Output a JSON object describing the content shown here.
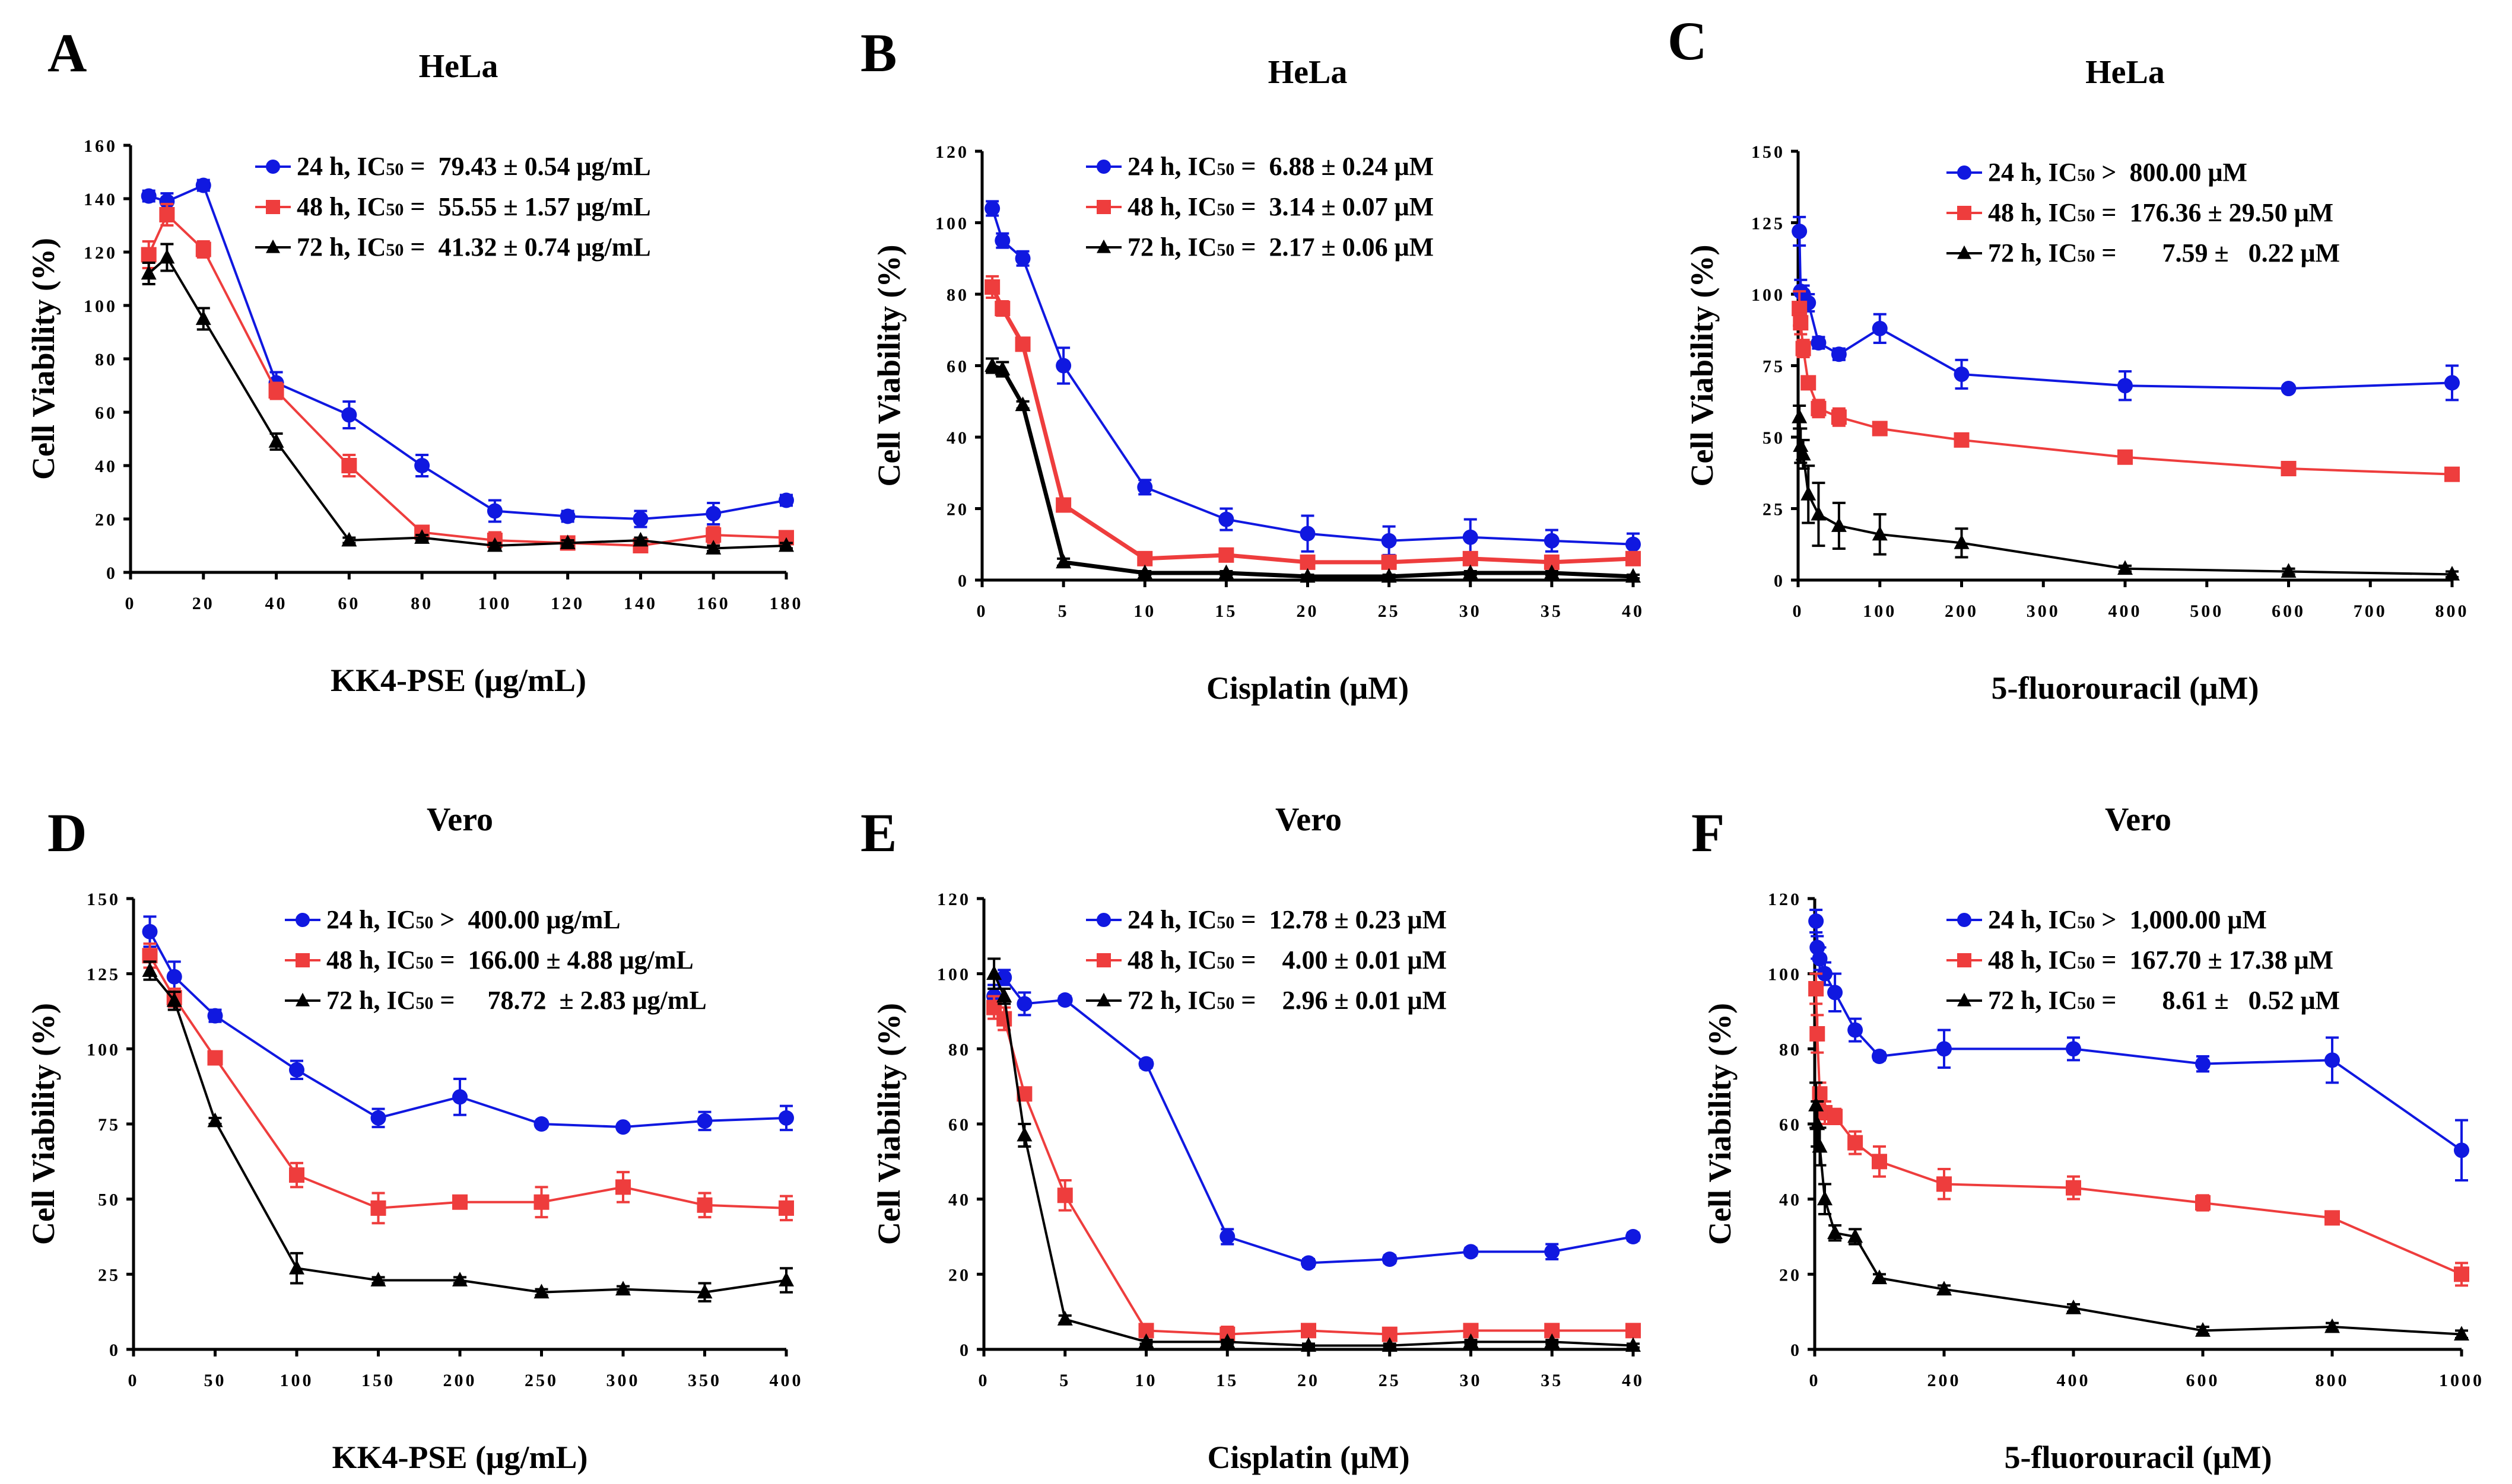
{
  "colors": {
    "24h": "#1018e0",
    "48h": "#ee3d3d",
    "72h": "#000000"
  },
  "chart_data": [
    {
      "panel": "A",
      "type": "line",
      "title": "HeLa",
      "xlabel": "KK4-PSE (μg/mL)",
      "ylabel": "Cell Viability (%)",
      "xlim": [
        0,
        180
      ],
      "ylim": [
        0,
        160
      ],
      "xticks": [
        0,
        20,
        40,
        60,
        80,
        100,
        120,
        140,
        160,
        180
      ],
      "yticks": [
        0,
        20,
        40,
        60,
        80,
        100,
        120,
        140,
        160
      ],
      "series": [
        {
          "key": "24h",
          "marker": "circle",
          "legend": {
            "pre": "24 h, IC",
            "sub": "50",
            "post": " =  79.43 ± 0.54 μg/mL"
          },
          "x": [
            5,
            10,
            20,
            40,
            60,
            80,
            100,
            120,
            140,
            160,
            180
          ],
          "y": [
            141,
            139,
            145,
            71,
            59,
            40,
            23,
            21,
            20,
            22,
            27
          ],
          "err": [
            2,
            3,
            2,
            4,
            5,
            4,
            4,
            2,
            3,
            4,
            2
          ]
        },
        {
          "key": "48h",
          "marker": "square",
          "legend": {
            "pre": "48 h, IC",
            "sub": "50",
            "post": " =  55.55 ± 1.57 μg/mL"
          },
          "x": [
            5,
            10,
            20,
            40,
            60,
            80,
            100,
            120,
            140,
            160,
            180
          ],
          "y": [
            119,
            134,
            121,
            68,
            40,
            15,
            12,
            11,
            10,
            14,
            13
          ],
          "err": [
            5,
            4,
            3,
            3,
            4,
            2,
            3,
            2,
            2,
            3,
            2
          ]
        },
        {
          "key": "72h",
          "marker": "triangle",
          "legend": {
            "pre": "72 h, IC",
            "sub": "50",
            "post": " =  41.32 ± 0.74 μg/mL"
          },
          "x": [
            5,
            10,
            20,
            40,
            60,
            80,
            100,
            120,
            140,
            160,
            180
          ],
          "y": [
            112,
            118,
            95,
            49,
            12,
            13,
            10,
            11,
            12,
            9,
            10
          ],
          "err": [
            4,
            5,
            4,
            3,
            1,
            1,
            1,
            1,
            1,
            1,
            1
          ]
        }
      ]
    },
    {
      "panel": "B",
      "type": "line",
      "title": "HeLa",
      "xlabel": "Cisplatin (μM)",
      "ylabel": "Cell Viability (%)",
      "xlim": [
        0,
        40
      ],
      "ylim": [
        0,
        120
      ],
      "xticks": [
        0,
        5,
        10,
        15,
        20,
        25,
        30,
        35,
        40
      ],
      "yticks": [
        0,
        20,
        40,
        60,
        80,
        100,
        120
      ],
      "series": [
        {
          "key": "24h",
          "marker": "circle",
          "legend": {
            "pre": "24 h, IC",
            "sub": "50",
            "post": " =  6.88 ± 0.24 μM"
          },
          "x": [
            0.625,
            1.25,
            2.5,
            5,
            10,
            15,
            20,
            25,
            30,
            35,
            40
          ],
          "y": [
            104,
            95,
            90,
            60,
            26,
            17,
            13,
            11,
            12,
            11,
            10
          ],
          "err": [
            2,
            2,
            2,
            5,
            2,
            3,
            5,
            4,
            5,
            3,
            3
          ]
        },
        {
          "key": "48h",
          "marker": "square",
          "legend": {
            "pre": "48 h, IC",
            "sub": "50",
            "post": " =  3.14 ± 0.07 μM"
          },
          "x": [
            0.625,
            1.25,
            2.5,
            5,
            10,
            15,
            20,
            25,
            30,
            35,
            40
          ],
          "y": [
            82,
            76,
            66,
            21,
            6,
            7,
            5,
            5,
            6,
            5,
            6
          ],
          "err": [
            3,
            2,
            1,
            1,
            1,
            1,
            1,
            1,
            1,
            1,
            1
          ]
        },
        {
          "key": "72h",
          "marker": "triangle",
          "legend": {
            "pre": "72 h, IC",
            "sub": "50",
            "post": " =  2.17 ± 0.06 μM"
          },
          "x": [
            0.625,
            1.25,
            2.5,
            5,
            10,
            15,
            20,
            25,
            30,
            35,
            40
          ],
          "y": [
            60,
            59,
            49,
            5,
            2,
            2,
            1,
            1,
            2,
            2,
            1
          ],
          "err": [
            2,
            2,
            1,
            1,
            0.5,
            0.5,
            0.5,
            0.5,
            0.5,
            0.5,
            0.5
          ]
        }
      ]
    },
    {
      "panel": "C",
      "type": "line",
      "title": "HeLa",
      "xlabel": "5-fluorouracil (μM)",
      "ylabel": "Cell Viability (%)",
      "xlim": [
        0,
        800
      ],
      "ylim": [
        0,
        150
      ],
      "xticks": [
        0,
        100,
        200,
        300,
        400,
        500,
        600,
        700,
        800
      ],
      "yticks": [
        0,
        25,
        50,
        75,
        100,
        125,
        150
      ],
      "series": [
        {
          "key": "24h",
          "marker": "circle",
          "legend": {
            "pre": "24 h, IC",
            "sub": "50",
            "post": " >  800.00 μM"
          },
          "x": [
            1.5625,
            3.125,
            6.25,
            12.5,
            25,
            50,
            100,
            200,
            400,
            600,
            800
          ],
          "y": [
            122,
            101,
            100,
            97,
            83,
            79,
            88,
            72,
            68,
            67,
            69
          ],
          "err": [
            5,
            4,
            3,
            3,
            2,
            2,
            5,
            5,
            5,
            1,
            6
          ]
        },
        {
          "key": "48h",
          "marker": "square",
          "legend": {
            "pre": "48 h, IC",
            "sub": "50",
            "post": " =  176.36 ± 29.50 μM"
          },
          "x": [
            1.5625,
            3.125,
            6.25,
            12.5,
            25,
            50,
            100,
            200,
            400,
            600,
            800
          ],
          "y": [
            95,
            90,
            81,
            69,
            60,
            57,
            53,
            49,
            43,
            39,
            37
          ],
          "err": [
            6,
            4,
            3,
            2,
            3,
            3,
            2,
            1,
            1,
            1,
            1
          ]
        },
        {
          "key": "72h",
          "marker": "triangle",
          "legend": {
            "pre": "72 h, IC",
            "sub": "50",
            "post": " =       7.59 ±   0.22 μM"
          },
          "x": [
            1.5625,
            3.125,
            6.25,
            12.5,
            25,
            50,
            100,
            200,
            400,
            600,
            800
          ],
          "y": [
            57,
            47,
            44,
            30,
            23,
            19,
            16,
            13,
            4,
            3,
            2
          ],
          "err": [
            4,
            6,
            5,
            10,
            11,
            8,
            7,
            5,
            1,
            1,
            1
          ]
        }
      ]
    },
    {
      "panel": "D",
      "type": "line",
      "title": "Vero",
      "xlabel": "KK4-PSE (μg/mL)",
      "ylabel": "Cell Viability (%)",
      "xlim": [
        0,
        400
      ],
      "ylim": [
        0,
        150
      ],
      "xticks": [
        0,
        50,
        100,
        150,
        200,
        250,
        300,
        350,
        400
      ],
      "yticks": [
        0,
        25,
        50,
        75,
        100,
        125,
        150
      ],
      "series": [
        {
          "key": "24h",
          "marker": "circle",
          "legend": {
            "pre": "24 h, IC",
            "sub": "50",
            "post": " >  400.00 μg/mL"
          },
          "x": [
            10,
            25,
            50,
            100,
            150,
            200,
            250,
            300,
            350,
            400
          ],
          "y": [
            139,
            124,
            111,
            93,
            77,
            84,
            75,
            74,
            76,
            77
          ],
          "err": [
            5,
            5,
            2,
            3,
            3,
            6,
            1,
            1,
            3,
            4
          ]
        },
        {
          "key": "48h",
          "marker": "square",
          "legend": {
            "pre": "48 h, IC",
            "sub": "50",
            "post": " =  166.00 ± 4.88 μg/mL"
          },
          "x": [
            10,
            25,
            50,
            100,
            150,
            200,
            250,
            300,
            350,
            400
          ],
          "y": [
            131,
            117,
            97,
            58,
            47,
            49,
            49,
            54,
            48,
            47
          ],
          "err": [
            4,
            3,
            2,
            4,
            5,
            2,
            5,
            5,
            4,
            4
          ]
        },
        {
          "key": "72h",
          "marker": "triangle",
          "legend": {
            "pre": "72 h, IC",
            "sub": "50",
            "post": " =     78.72  ± 2.83 μg/mL"
          },
          "x": [
            10,
            25,
            50,
            100,
            150,
            200,
            250,
            300,
            350,
            400
          ],
          "y": [
            126,
            116,
            76,
            27,
            23,
            23,
            19,
            20,
            19,
            23
          ],
          "err": [
            3,
            3,
            1,
            5,
            1,
            1,
            1,
            1,
            3,
            4
          ]
        }
      ]
    },
    {
      "panel": "E",
      "type": "line",
      "title": "Vero",
      "xlabel": "Cisplatin (μM)",
      "ylabel": "Cell Viability (%)",
      "xlim": [
        0,
        40
      ],
      "ylim": [
        0,
        120
      ],
      "xticks": [
        0,
        5,
        10,
        15,
        20,
        25,
        30,
        35,
        40
      ],
      "yticks": [
        0,
        20,
        40,
        60,
        80,
        100,
        120
      ],
      "series": [
        {
          "key": "24h",
          "marker": "circle",
          "legend": {
            "pre": "24 h, IC",
            "sub": "50",
            "post": " =  12.78 ± 0.23 μM"
          },
          "x": [
            0.625,
            1.25,
            2.5,
            5,
            10,
            15,
            20,
            25,
            30,
            35,
            40
          ],
          "y": [
            94,
            99,
            92,
            93,
            76,
            30,
            23,
            24,
            26,
            26,
            30
          ],
          "err": [
            3,
            2,
            3,
            1,
            1,
            2,
            1,
            1,
            1,
            2,
            1
          ]
        },
        {
          "key": "48h",
          "marker": "square",
          "legend": {
            "pre": "48 h, IC",
            "sub": "50",
            "post": " =    4.00 ± 0.01 μM"
          },
          "x": [
            0.625,
            1.25,
            2.5,
            5,
            10,
            15,
            20,
            25,
            30,
            35,
            40
          ],
          "y": [
            91,
            88,
            68,
            41,
            5,
            4,
            5,
            4,
            5,
            5,
            5
          ],
          "err": [
            3,
            3,
            1,
            4,
            1,
            2,
            1,
            1,
            1,
            1,
            1
          ]
        },
        {
          "key": "72h",
          "marker": "triangle",
          "legend": {
            "pre": "72 h, IC",
            "sub": "50",
            "post": " =    2.96 ± 0.01 μM"
          },
          "x": [
            0.625,
            1.25,
            2.5,
            5,
            10,
            15,
            20,
            25,
            30,
            35,
            40
          ],
          "y": [
            100,
            94,
            57,
            8,
            2,
            2,
            1,
            1,
            2,
            2,
            1
          ],
          "err": [
            4,
            2,
            3,
            1,
            0.5,
            0.5,
            0.5,
            0.5,
            0.5,
            0.5,
            0.5
          ]
        }
      ]
    },
    {
      "panel": "F",
      "type": "line",
      "title": "Vero",
      "xlabel": "5-fluorouracil (μM)",
      "ylabel": "Cell Viability (%)",
      "xlim": [
        0,
        1000
      ],
      "ylim": [
        0,
        120
      ],
      "xticks": [
        0,
        200,
        400,
        600,
        800,
        1000
      ],
      "yticks": [
        0,
        20,
        40,
        60,
        80,
        100,
        120
      ],
      "series": [
        {
          "key": "24h",
          "marker": "circle",
          "legend": {
            "pre": "24 h, IC",
            "sub": "50",
            "post": " >  1,000.00 μM"
          },
          "x": [
            1.95,
            3.9,
            7.8,
            15.6,
            31.25,
            62.5,
            100,
            200,
            400,
            600,
            800,
            1000
          ],
          "y": [
            114,
            107,
            104,
            100,
            95,
            85,
            78,
            80,
            80,
            76,
            77,
            53
          ],
          "err": [
            3,
            3,
            3,
            3,
            5,
            3,
            1,
            5,
            3,
            2,
            6,
            8
          ]
        },
        {
          "key": "48h",
          "marker": "square",
          "legend": {
            "pre": "48 h, IC",
            "sub": "50",
            "post": " =  167.70 ± 17.38 μM"
          },
          "x": [
            1.95,
            3.9,
            7.8,
            15.6,
            31.25,
            62.5,
            100,
            200,
            400,
            600,
            800,
            1000
          ],
          "y": [
            96,
            84,
            68,
            63,
            62,
            55,
            50,
            44,
            43,
            39,
            35,
            20
          ],
          "err": [
            4,
            5,
            3,
            3,
            2,
            3,
            4,
            4,
            3,
            2,
            1,
            3
          ]
        },
        {
          "key": "72h",
          "marker": "triangle",
          "legend": {
            "pre": "72 h, IC",
            "sub": "50",
            "post": " =       8.61 ±   0.52 μM"
          },
          "x": [
            1.95,
            3.9,
            7.8,
            15.6,
            31.25,
            62.5,
            100,
            200,
            400,
            600,
            800,
            1000
          ],
          "y": [
            65,
            60,
            54,
            40,
            31,
            30,
            19,
            16,
            11,
            5,
            6,
            4
          ],
          "err": [
            6,
            6,
            5,
            4,
            2,
            2,
            1,
            1,
            1,
            1,
            1,
            1
          ]
        }
      ]
    }
  ]
}
